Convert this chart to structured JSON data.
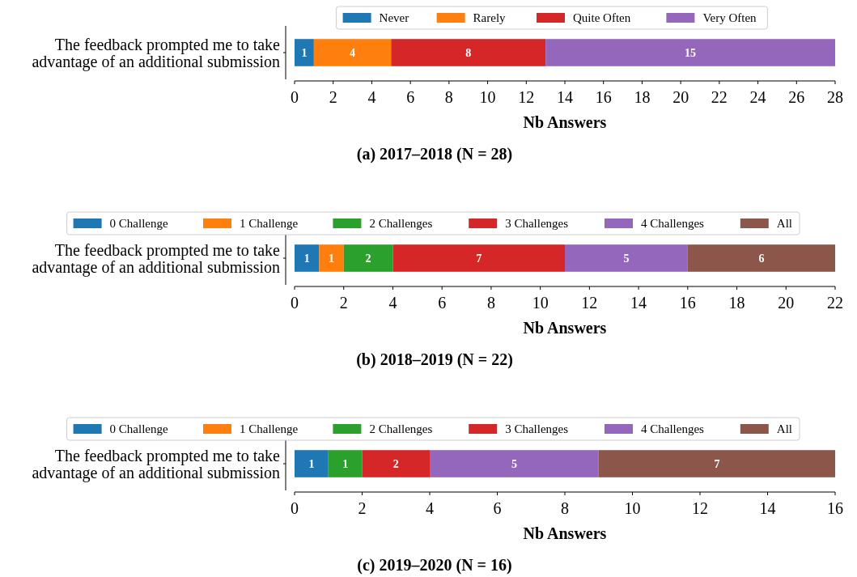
{
  "chart_data": [
    {
      "type": "bar",
      "orientation": "horizontal",
      "stacked": true,
      "title": "(a) 2017–2018 (N = 28)",
      "xlabel": "Nb Answers",
      "categories": [
        "The feedback prompted me to take advantage of an additional submission"
      ],
      "series": [
        {
          "name": "Never",
          "color": "#1f77b4",
          "values": [
            1
          ]
        },
        {
          "name": "Rarely",
          "color": "#ff7f0e",
          "values": [
            4
          ]
        },
        {
          "name": "Quite Often",
          "color": "#d62728",
          "values": [
            8
          ]
        },
        {
          "name": "Very Often",
          "color": "#9467bd",
          "values": [
            15
          ]
        }
      ],
      "xlim": [
        0,
        28
      ],
      "xticks": [
        0,
        2,
        4,
        6,
        8,
        10,
        12,
        14,
        16,
        18,
        20,
        22,
        24,
        26,
        28
      ],
      "data_labels": true,
      "legend": "top",
      "grid": false
    },
    {
      "type": "bar",
      "orientation": "horizontal",
      "stacked": true,
      "title": "(b) 2018–2019 (N = 22)",
      "xlabel": "Nb Answers",
      "categories": [
        "The feedback prompted me to take advantage of an additional submission"
      ],
      "series": [
        {
          "name": "0 Challenge",
          "color": "#1f77b4",
          "values": [
            1
          ]
        },
        {
          "name": "1 Challenge",
          "color": "#ff7f0e",
          "values": [
            1
          ]
        },
        {
          "name": "2 Challenges",
          "color": "#2ca02c",
          "values": [
            2
          ]
        },
        {
          "name": "3 Challenges",
          "color": "#d62728",
          "values": [
            7
          ]
        },
        {
          "name": "4 Challenges",
          "color": "#9467bd",
          "values": [
            5
          ]
        },
        {
          "name": "All",
          "color": "#8c564b",
          "values": [
            6
          ]
        }
      ],
      "xlim": [
        0,
        22
      ],
      "xticks": [
        0,
        2,
        4,
        6,
        8,
        10,
        12,
        14,
        16,
        18,
        20,
        22
      ],
      "data_labels": true,
      "legend": "top",
      "grid": false
    },
    {
      "type": "bar",
      "orientation": "horizontal",
      "stacked": true,
      "title": "(c) 2019–2020 (N = 16)",
      "xlabel": "Nb Answers",
      "categories": [
        "The feedback prompted me to take advantage of an additional submission"
      ],
      "series": [
        {
          "name": "0 Challenge",
          "color": "#1f77b4",
          "values": [
            1
          ],
          "value_labels": [
            "1"
          ]
        },
        {
          "name": "1 Challenge",
          "color": "#ff7f0e",
          "values": [
            0
          ],
          "value_labels": [
            null
          ]
        },
        {
          "name": "2 Challenges",
          "color": "#2ca02c",
          "values": [
            1
          ],
          "value_labels": [
            "1"
          ]
        },
        {
          "name": "3 Challenges",
          "color": "#d62728",
          "values": [
            2
          ],
          "value_labels": [
            "2"
          ]
        },
        {
          "name": "4 Challenges",
          "color": "#9467bd",
          "values": [
            5
          ],
          "value_labels": [
            "5"
          ]
        },
        {
          "name": "All",
          "color": "#8c564b",
          "values": [
            7
          ],
          "value_labels": [
            "7"
          ]
        }
      ],
      "xlim": [
        0,
        16
      ],
      "xticks": [
        0,
        2,
        4,
        6,
        8,
        10,
        12,
        14,
        16
      ],
      "legend": "top",
      "grid": false
    }
  ]
}
